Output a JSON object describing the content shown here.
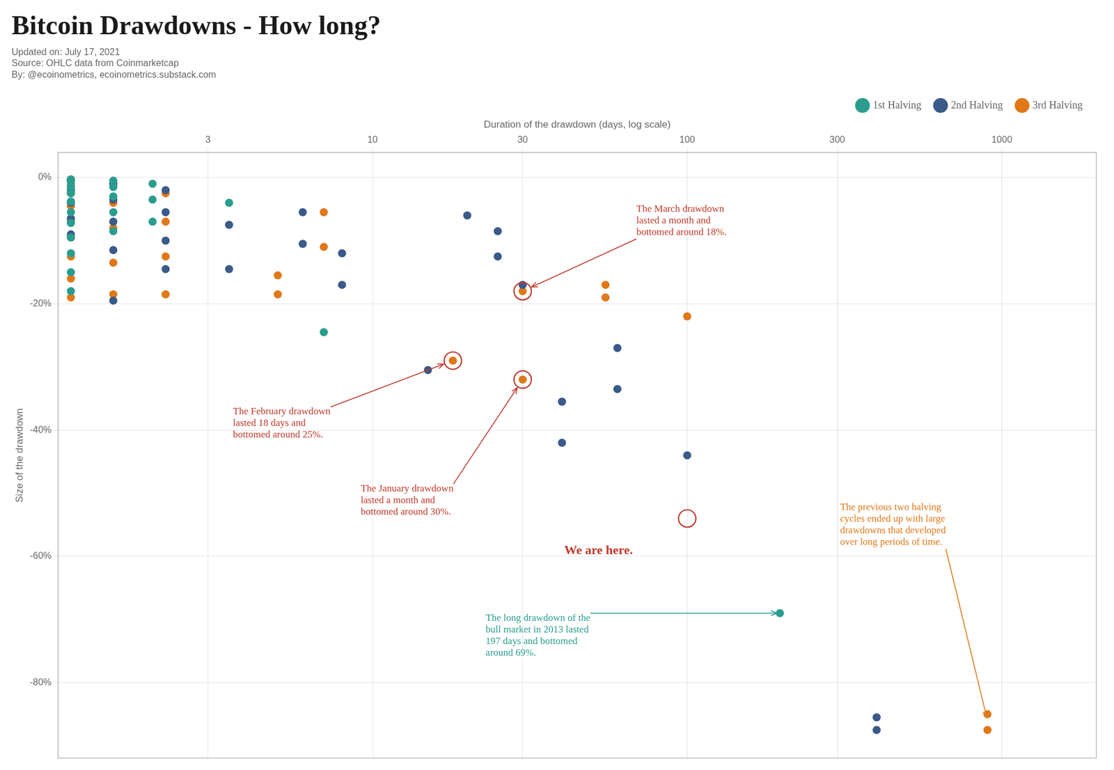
{
  "chart_data": {
    "type": "scatter",
    "title": "Bitcoin Drawdowns - How long?",
    "subtitle": [
      "Updated on: July 17, 2021",
      "Source: OHLC data from Coinmarketcap",
      "By: @ecoinometrics, ecoinometrics.substack.com"
    ],
    "x_label": "Duration of the drawdown (days, log scale)",
    "y_label": "Size of the drawdown",
    "log": "x",
    "grid": true,
    "legend": "top-right",
    "xlim": [
      1.0,
      2000
    ],
    "xticks": [
      3,
      10,
      30,
      100,
      300,
      1000
    ],
    "ylim": [
      -92,
      4
    ],
    "yticks": [
      {
        "value": 0,
        "label": "0%"
      },
      {
        "value": -20,
        "label": "-20%"
      },
      {
        "value": -40,
        "label": "-40%"
      },
      {
        "value": -60,
        "label": "-60%"
      },
      {
        "value": -80,
        "label": "-80%"
      }
    ],
    "series": [
      {
        "name": "1st Halving",
        "color": "#2a9d8f",
        "x": [
          1.1,
          1.1,
          1.1,
          1.1,
          1.1,
          1.1,
          1.1,
          1.1,
          1.1,
          1.1,
          1.1,
          1.5,
          1.5,
          1.5,
          1.5,
          1.5,
          2.0,
          2.0,
          2.0,
          3.5,
          7.0,
          197
        ],
        "values": [
          -0.3,
          -0.8,
          -1.5,
          -2.5,
          -3.8,
          -5.5,
          -7.2,
          -9.5,
          -12.0,
          -15.0,
          -18.0,
          -0.5,
          -1.5,
          -3.0,
          -5.5,
          -8.5,
          -1.0,
          -3.5,
          -7.0,
          -4.0,
          -24.5,
          -69.0
        ]
      },
      {
        "name": "2nd Halving",
        "color": "#3a5a8a",
        "x": [
          1.1,
          1.1,
          1.1,
          1.1,
          1.1,
          1.5,
          1.5,
          1.5,
          1.5,
          1.5,
          2.2,
          2.2,
          2.2,
          2.2,
          3.5,
          3.5,
          6.0,
          6.0,
          8.0,
          8.0,
          15.0,
          20.0,
          25.0,
          25.0,
          30.0,
          40.0,
          40.0,
          60.0,
          60.0,
          100.0,
          400.0,
          400.0
        ],
        "values": [
          -0.5,
          -2.0,
          -4.0,
          -6.5,
          -9.0,
          -1.0,
          -3.5,
          -7.0,
          -11.5,
          -19.5,
          -2.0,
          -5.5,
          -10.0,
          -14.5,
          -7.5,
          -14.5,
          -5.5,
          -10.5,
          -12.0,
          -17.0,
          -30.5,
          -6.0,
          -8.5,
          -12.5,
          -17.0,
          -35.5,
          -42.0,
          -27.0,
          -33.5,
          -44.0,
          -85.5,
          -87.5
        ]
      },
      {
        "name": "3rd Halving",
        "color": "#e07818",
        "x": [
          1.1,
          1.1,
          1.1,
          1.1,
          1.1,
          1.1,
          1.1,
          1.1,
          1.1,
          1.5,
          1.5,
          1.5,
          1.5,
          1.5,
          2.2,
          2.2,
          2.2,
          2.2,
          5.0,
          5.0,
          7.0,
          7.0,
          18.0,
          30.0,
          30.0,
          55.0,
          55.0,
          100.0,
          900.0,
          900.0
        ],
        "values": [
          -0.3,
          -1.2,
          -2.5,
          -4.5,
          -7.0,
          -9.5,
          -12.5,
          -16.0,
          -19.0,
          -1.0,
          -4.0,
          -8.0,
          -13.5,
          -18.5,
          -2.5,
          -7.0,
          -12.5,
          -18.5,
          -15.5,
          -18.5,
          -5.5,
          -11.0,
          -29.0,
          -18.0,
          -32.0,
          -17.0,
          -19.0,
          -22.0,
          -85.0,
          -87.5
        ]
      }
    ],
    "annotations": [
      {
        "text": "The March drawdown\nlasted a month and\nbottomed around 18%.",
        "color": "#c0392b",
        "x": 30.0,
        "y": -18.0,
        "marker": "circle",
        "line_style": "arrow"
      },
      {
        "text": "The February drawdown\nlasted 18 days and\nbottomed around 25%.",
        "color": "#c0392b",
        "x": 18.0,
        "y": -29.0,
        "marker": "circle",
        "line_style": "arrow"
      },
      {
        "text": "The January drawdown\nlasted a month and\nbottomed around 30%.",
        "color": "#c0392b",
        "x": 30.0,
        "y": -32.0,
        "marker": "circle",
        "line_style": "arrow"
      },
      {
        "text": "We are here.",
        "color": "#c0392b",
        "x": 100.0,
        "y": -54.0,
        "marker": "circle"
      },
      {
        "text": "The long drawdown of the\nbull market in 2013 lasted\n197 days and bottomed\naround 69%.",
        "color": "#2a9d8f",
        "x": 197,
        "y": -69.0,
        "line_style": "arrow"
      },
      {
        "text": "The previous two halving\ncycles ended up with large\ndrawdowns that developed\nover long periods of time.",
        "color": "#e07818",
        "x": 900,
        "y": -86.0,
        "line_style": "arrow"
      }
    ]
  }
}
